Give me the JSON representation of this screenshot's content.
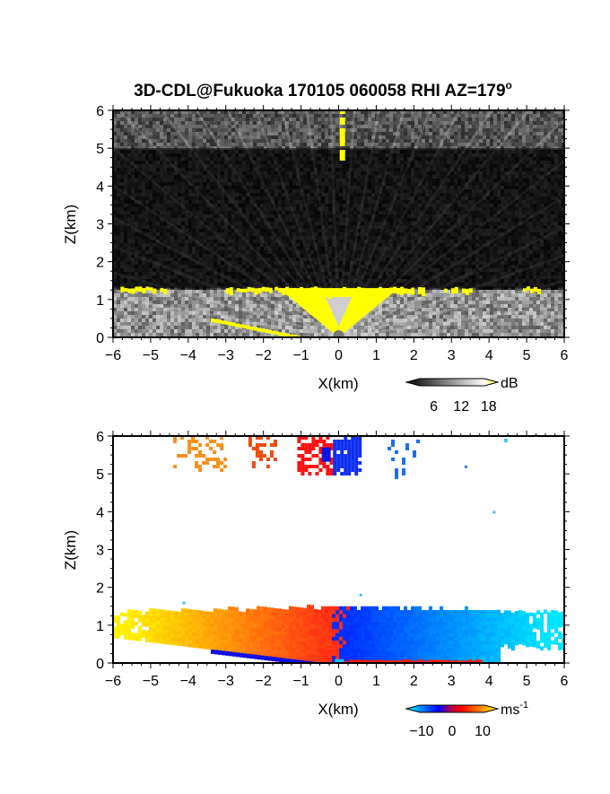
{
  "title": "3D-CDL@Fukuoka 170105 060058 RHI AZ=179",
  "title_superscript": "o",
  "chart_data": [
    {
      "type": "heatmap",
      "panel": "reflectivity",
      "xlabel": "X(km)",
      "ylabel": "Z(km)",
      "xlim": [
        -6,
        6
      ],
      "ylim": [
        0,
        6
      ],
      "x_ticks": [
        "-6",
        "-5",
        "-4",
        "-3",
        "-2",
        "-1",
        "0",
        "1",
        "2",
        "3",
        "4",
        "5",
        "6"
      ],
      "y_ticks": [
        "0",
        "1",
        "2",
        "3",
        "4",
        "5",
        "6"
      ],
      "grid": false,
      "colorbar": {
        "unit": "dB",
        "tick_labels": [
          "6",
          "12",
          "18"
        ],
        "range": [
          0,
          20
        ],
        "colors": [
          "#000000",
          "#ffffff",
          "#ffff00"
        ]
      },
      "features": {
        "near_surface_layer_top_km": 1.3,
        "strong_echo_color": "#ffff00",
        "cloud_echo_z_range_km": [
          5.0,
          6.0
        ],
        "vertical_beam_x_km": 0.1
      }
    },
    {
      "type": "heatmap",
      "panel": "doppler_velocity",
      "xlabel": "X(km)",
      "ylabel": "Z(km)",
      "xlim": [
        -6,
        6
      ],
      "ylim": [
        0,
        6
      ],
      "x_ticks": [
        "-6",
        "-5",
        "-4",
        "-3",
        "-2",
        "-1",
        "0",
        "1",
        "2",
        "3",
        "4",
        "5",
        "6"
      ],
      "y_ticks": [
        "0",
        "1",
        "2",
        "3",
        "4",
        "5",
        "6"
      ],
      "grid": false,
      "colorbar": {
        "unit": "ms",
        "unit_superscript": "-1",
        "tick_labels": [
          "-10",
          "0",
          "10"
        ],
        "range": [
          -15,
          15
        ],
        "colors": [
          "#00ffff",
          "#0000ff",
          "#ff0000",
          "#ffff00"
        ]
      },
      "features": {
        "near_surface_layer_top_km": 1.45,
        "positive_side": "x<0",
        "negative_side": "x>0",
        "cloud_echo_z_range_km": [
          5.0,
          6.0
        ]
      }
    }
  ]
}
